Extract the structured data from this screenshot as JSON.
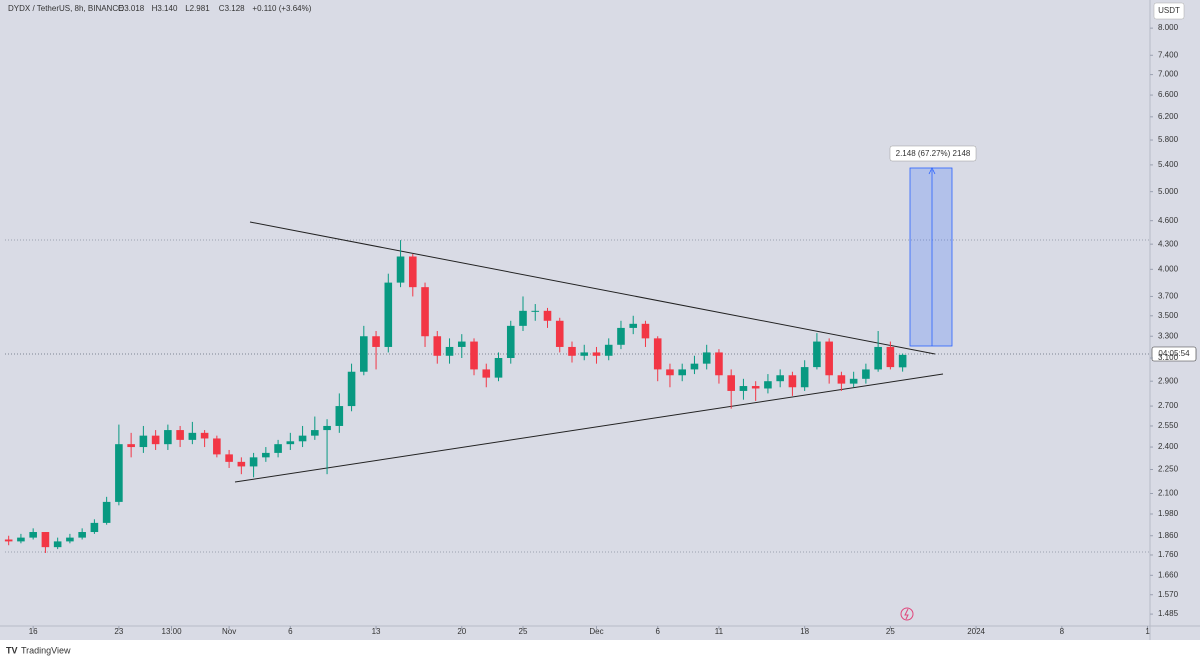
{
  "chart_data": {
    "type": "candlestick",
    "title": "DYDX / TetherUS, 8h, BINANCE",
    "header_stats": [
      "O3.018",
      "H3.140",
      "L2.981",
      "C3.128",
      "+0.110 (+3.64%)"
    ],
    "currency": "USDT",
    "countdown": "04:05:54",
    "measure_label": "2.148 (67.27%) 2148",
    "branding": "TradingView",
    "log_scale": true,
    "grid": false,
    "up_color": "#089981",
    "down_color": "#f23645",
    "x": [
      -2,
      -1,
      0,
      1,
      2,
      3,
      4,
      5,
      6,
      7,
      8,
      9,
      10,
      11,
      12,
      13,
      14,
      15,
      16,
      17,
      18,
      19,
      20,
      21,
      22,
      23,
      24,
      25,
      26,
      27,
      28,
      29,
      30,
      31,
      32,
      33,
      34,
      35,
      36,
      37,
      38,
      39,
      40,
      41,
      42,
      43,
      44,
      45,
      46,
      47,
      48,
      49,
      50,
      51,
      52,
      53,
      54,
      55,
      56,
      57,
      58,
      59,
      60,
      61,
      62,
      63,
      64,
      65,
      66,
      67,
      68,
      69,
      70,
      71
    ],
    "open": [
      1.84,
      1.83,
      1.85,
      1.88,
      1.8,
      1.83,
      1.85,
      1.88,
      1.93,
      2.05,
      2.42,
      2.4,
      2.48,
      2.42,
      2.52,
      2.45,
      2.5,
      2.46,
      2.35,
      2.3,
      2.27,
      2.33,
      2.36,
      2.42,
      2.44,
      2.48,
      2.52,
      2.55,
      2.7,
      2.98,
      3.3,
      3.2,
      3.85,
      4.15,
      3.8,
      3.3,
      3.12,
      3.2,
      3.25,
      3.0,
      2.93,
      3.1,
      3.4,
      3.55,
      3.55,
      3.45,
      3.2,
      3.12,
      3.15,
      3.12,
      3.22,
      3.38,
      3.42,
      3.28,
      3.0,
      2.95,
      3.0,
      3.05,
      3.15,
      2.95,
      2.82,
      2.86,
      2.84,
      2.9,
      2.95,
      2.85,
      3.02,
      3.25,
      2.95,
      2.88,
      2.92,
      3.0,
      3.2,
      3.018
    ],
    "high": [
      1.86,
      1.87,
      1.9,
      1.88,
      1.85,
      1.87,
      1.9,
      1.95,
      2.08,
      2.56,
      2.5,
      2.55,
      2.52,
      2.56,
      2.55,
      2.58,
      2.52,
      2.48,
      2.38,
      2.33,
      2.36,
      2.4,
      2.45,
      2.5,
      2.55,
      2.62,
      2.6,
      2.8,
      3.05,
      3.4,
      3.35,
      3.95,
      4.35,
      4.18,
      3.85,
      3.35,
      3.28,
      3.32,
      3.28,
      3.05,
      3.15,
      3.45,
      3.7,
      3.62,
      3.58,
      3.48,
      3.25,
      3.22,
      3.2,
      3.28,
      3.45,
      3.5,
      3.45,
      3.3,
      3.05,
      3.05,
      3.12,
      3.22,
      3.18,
      3.0,
      2.92,
      2.9,
      2.96,
      3.0,
      2.98,
      3.08,
      3.33,
      3.28,
      2.98,
      2.98,
      3.05,
      3.35,
      3.25,
      3.14
    ],
    "low": [
      1.81,
      1.82,
      1.84,
      1.77,
      1.79,
      1.82,
      1.84,
      1.87,
      1.92,
      2.03,
      2.33,
      2.36,
      2.38,
      2.38,
      2.4,
      2.42,
      2.4,
      2.33,
      2.26,
      2.22,
      2.2,
      2.3,
      2.33,
      2.38,
      2.4,
      2.45,
      2.22,
      2.5,
      2.66,
      2.95,
      3.0,
      3.15,
      3.8,
      3.7,
      3.2,
      3.05,
      3.05,
      3.1,
      2.95,
      2.85,
      2.9,
      3.05,
      3.35,
      3.45,
      3.38,
      3.15,
      3.06,
      3.08,
      3.05,
      3.08,
      3.18,
      3.32,
      3.2,
      2.9,
      2.85,
      2.9,
      2.96,
      3.0,
      2.88,
      2.68,
      2.75,
      2.74,
      2.8,
      2.85,
      2.78,
      2.82,
      3.0,
      2.88,
      2.82,
      2.85,
      2.88,
      2.98,
      3.0,
      2.981
    ],
    "close": [
      1.83,
      1.85,
      1.88,
      1.8,
      1.83,
      1.85,
      1.88,
      1.93,
      2.05,
      2.42,
      2.4,
      2.48,
      2.42,
      2.52,
      2.45,
      2.5,
      2.46,
      2.35,
      2.3,
      2.27,
      2.33,
      2.36,
      2.42,
      2.44,
      2.48,
      2.52,
      2.55,
      2.7,
      2.98,
      3.3,
      3.2,
      3.85,
      4.15,
      3.8,
      3.3,
      3.12,
      3.2,
      3.25,
      3.0,
      2.93,
      3.1,
      3.4,
      3.55,
      3.55,
      3.45,
      3.2,
      3.12,
      3.15,
      3.12,
      3.22,
      3.38,
      3.42,
      3.28,
      3.0,
      2.95,
      3.0,
      3.05,
      3.15,
      2.95,
      2.82,
      2.86,
      2.84,
      2.9,
      2.95,
      2.85,
      3.02,
      3.25,
      2.95,
      2.88,
      2.92,
      3.0,
      3.2,
      3.02,
      3.128
    ],
    "xlim": [
      -2.3,
      91.2
    ],
    "xticks": [
      {
        "value": 0,
        "label": "16"
      },
      {
        "value": 7,
        "label": "23"
      },
      {
        "value": 11.3,
        "label": "13:00"
      },
      {
        "value": 16,
        "label": "Nov"
      },
      {
        "value": 21,
        "label": "6"
      },
      {
        "value": 28,
        "label": "13"
      },
      {
        "value": 35,
        "label": "20"
      },
      {
        "value": 40,
        "label": "25"
      },
      {
        "value": 46,
        "label": "Dec"
      },
      {
        "value": 51,
        "label": "6"
      },
      {
        "value": 56,
        "label": "11"
      },
      {
        "value": 63,
        "label": "18"
      },
      {
        "value": 70,
        "label": "25"
      },
      {
        "value": 77,
        "label": "2024"
      },
      {
        "value": 84,
        "label": "8"
      },
      {
        "value": 91,
        "label": "1"
      }
    ],
    "ylim": [
      1.435,
      8.55
    ],
    "yticks": [
      {
        "value": 8,
        "label": "8.000"
      },
      {
        "value": 7.4,
        "label": "7.400"
      },
      {
        "value": 7,
        "label": "7.000"
      },
      {
        "value": 6.6,
        "label": "6.600"
      },
      {
        "value": 6.2,
        "label": "6.200"
      },
      {
        "value": 5.8,
        "label": "5.800"
      },
      {
        "value": 5.4,
        "label": "5.400"
      },
      {
        "value": 5,
        "label": "5.000"
      },
      {
        "value": 4.6,
        "label": "4.600"
      },
      {
        "value": 4.3,
        "label": "4.300"
      },
      {
        "value": 4,
        "label": "4.000"
      },
      {
        "value": 3.7,
        "label": "3.700"
      },
      {
        "value": 3.5,
        "label": "3.500"
      },
      {
        "value": 3.3,
        "label": "3.300"
      },
      {
        "value": 3.1,
        "label": "3.100"
      },
      {
        "value": 2.9,
        "label": "2.900"
      },
      {
        "value": 2.7,
        "label": "2.700"
      },
      {
        "value": 2.55,
        "label": "2.550"
      },
      {
        "value": 2.4,
        "label": "2.400"
      },
      {
        "value": 2.25,
        "label": "2.250"
      },
      {
        "value": 2.1,
        "label": "2.100"
      },
      {
        "value": 1.98,
        "label": "1.980"
      },
      {
        "value": 1.86,
        "label": "1.860"
      },
      {
        "value": 1.76,
        "label": "1.760"
      },
      {
        "value": 1.66,
        "label": "1.660"
      },
      {
        "value": 1.57,
        "label": "1.570"
      },
      {
        "value": 1.485,
        "label": "1.485"
      }
    ]
  }
}
